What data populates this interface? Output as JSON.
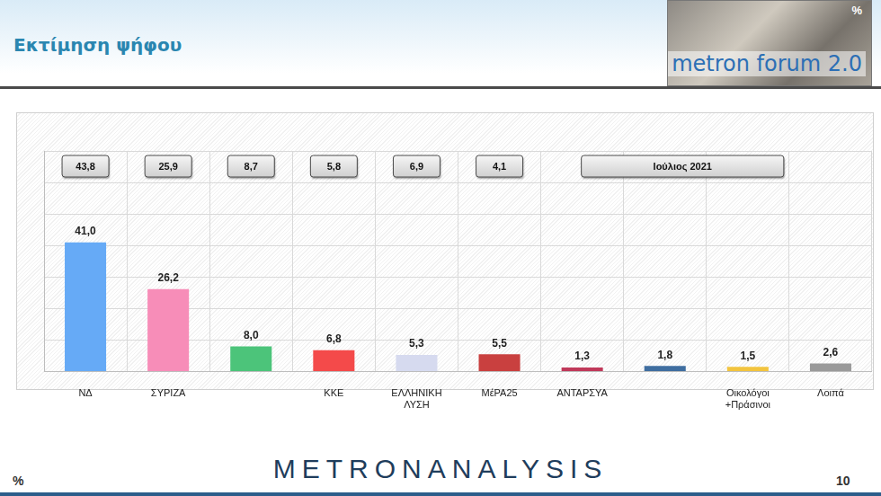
{
  "chart_data": {
    "type": "bar",
    "title": "Εκτίμηση ψήφου",
    "categories": [
      "ΝΔ",
      "ΣΥΡΙΖΑ",
      null,
      "ΚΚΕ",
      "ΕΛΛΗΝΙΚΗ ΛΥΣΗ",
      "ΜέΡΑ25",
      "ΑΝΤΑΡΣΥΑ",
      null,
      "Οικολόγοι +Πράσινοι",
      "Λοιπά"
    ],
    "values": [
      41.0,
      26.2,
      8.0,
      6.8,
      5.3,
      5.5,
      1.3,
      1.8,
      1.5,
      2.6
    ],
    "value_labels": [
      "41,0",
      "26,2",
      "8,0",
      "6,8",
      "5,3",
      "5,5",
      "1,3",
      "1,8",
      "1,5",
      "2,6"
    ],
    "colors": [
      "#66aaf6",
      "#f78db8",
      "#4cc47a",
      "#f44a4a",
      "#d6daef",
      "#c9403f",
      "#c0395a",
      "#3f6ea0",
      "#f2c43e",
      "#9a9a9a"
    ],
    "previous": {
      "name": "Ιούλιος 2021",
      "values": [
        43.8,
        25.9,
        8.7,
        5.8,
        6.9,
        4.1,
        null,
        null,
        null,
        null
      ],
      "value_labels": [
        "43,8",
        "25,9",
        "8,7",
        "5,8",
        "6,9",
        "4,1",
        null,
        null,
        null,
        null
      ]
    },
    "ylim": [
      0,
      70
    ],
    "yticks": [
      0,
      10,
      20,
      30,
      40,
      50,
      60,
      70
    ],
    "grid": true,
    "data_labels": true,
    "tick_labels": "x"
  },
  "page": {
    "logo": "metron forum 2.0",
    "brand": "METRONANALYSIS",
    "unit": "%",
    "page_number": 10
  }
}
